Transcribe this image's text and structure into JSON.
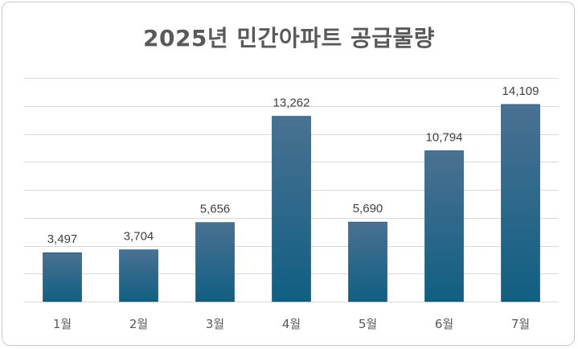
{
  "chart_data": {
    "type": "bar",
    "title": "2025년 민간아파트 공급물량",
    "categories": [
      "1월",
      "2월",
      "3월",
      "4월",
      "5월",
      "6월",
      "7월"
    ],
    "values": [
      3497,
      3704,
      5656,
      13262,
      5690,
      10794,
      14109
    ],
    "data_labels": [
      "3,497",
      "3,704",
      "5,656",
      "13,262",
      "5,690",
      "10,794",
      "14,109"
    ],
    "xlabel": "",
    "ylabel": "",
    "ylim": [
      0,
      16000
    ],
    "y_axis_tick_labels_shown": false,
    "grid": true,
    "legend": "none",
    "colors": {
      "bar_top": "#4a7192",
      "bar_bottom": "#105f82",
      "bar_edge": "#0e4a66"
    }
  }
}
